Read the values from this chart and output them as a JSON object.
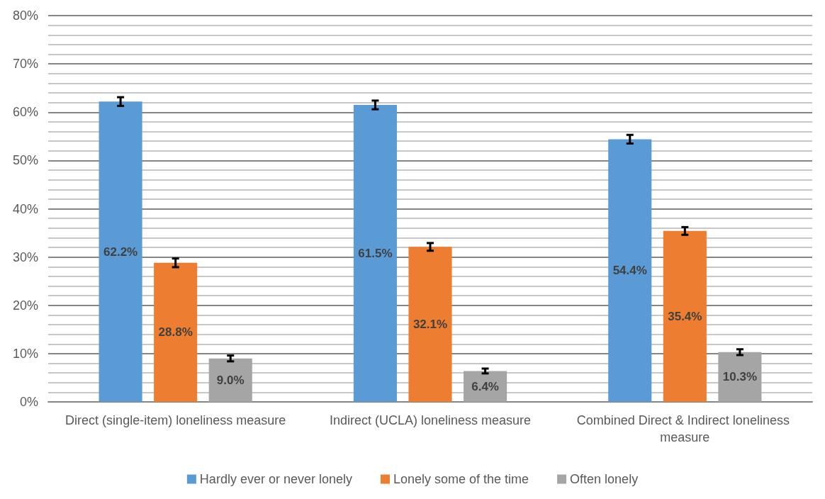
{
  "chart_data": {
    "type": "bar",
    "categories": [
      "Direct (single-item) loneliness measure",
      "Indirect (UCLA) loneliness measure",
      "Combined Direct & Indirect loneliness measure"
    ],
    "series": [
      {
        "name": "Hardly ever or never lonely",
        "color": "#5b9bd5",
        "values": [
          62.2,
          61.5,
          54.4
        ],
        "errors": [
          0.9,
          0.9,
          0.9
        ],
        "value_labels": [
          "62.2%",
          "61.5%",
          "54.4%"
        ]
      },
      {
        "name": "Lonely some of the time",
        "color": "#ed7d31",
        "values": [
          28.8,
          32.1,
          35.4
        ],
        "errors": [
          0.9,
          0.8,
          0.8
        ],
        "value_labels": [
          "28.8%",
          "32.1%",
          "35.4%"
        ]
      },
      {
        "name": "Often lonely",
        "color": "#a5a5a5",
        "values": [
          9.0,
          6.4,
          10.3
        ],
        "errors": [
          0.6,
          0.5,
          0.6
        ],
        "value_labels": [
          "9.0%",
          "6.4%",
          "10.3%"
        ]
      }
    ],
    "ylim": [
      0,
      80
    ],
    "yticks": [
      {
        "value": 0,
        "label": "0%"
      },
      {
        "value": 2,
        "label": null
      },
      {
        "value": 4,
        "label": null
      },
      {
        "value": 6,
        "label": null
      },
      {
        "value": 8,
        "label": null
      },
      {
        "value": 10,
        "label": "10%"
      },
      {
        "value": 12,
        "label": null
      },
      {
        "value": 14,
        "label": null
      },
      {
        "value": 16,
        "label": null
      },
      {
        "value": 18,
        "label": null
      },
      {
        "value": 20,
        "label": "20%"
      },
      {
        "value": 22,
        "label": null
      },
      {
        "value": 24,
        "label": null
      },
      {
        "value": 26,
        "label": null
      },
      {
        "value": 28,
        "label": null
      },
      {
        "value": 30,
        "label": "30%"
      },
      {
        "value": 32,
        "label": null
      },
      {
        "value": 34,
        "label": null
      },
      {
        "value": 36,
        "label": null
      },
      {
        "value": 38,
        "label": null
      },
      {
        "value": 40,
        "label": "40%"
      },
      {
        "value": 42,
        "label": null
      },
      {
        "value": 44,
        "label": null
      },
      {
        "value": 46,
        "label": null
      },
      {
        "value": 48,
        "label": null
      },
      {
        "value": 50,
        "label": "50%"
      },
      {
        "value": 52,
        "label": null
      },
      {
        "value": 54,
        "label": null
      },
      {
        "value": 56,
        "label": null
      },
      {
        "value": 58,
        "label": null
      },
      {
        "value": 60,
        "label": "60%"
      },
      {
        "value": 62,
        "label": null
      },
      {
        "value": 64,
        "label": null
      },
      {
        "value": 66,
        "label": null
      },
      {
        "value": 68,
        "label": null
      },
      {
        "value": 70,
        "label": "70%"
      },
      {
        "value": 72,
        "label": null
      },
      {
        "value": 74,
        "label": null
      },
      {
        "value": 76,
        "label": null
      },
      {
        "value": 78,
        "label": null
      },
      {
        "value": 80,
        "label": "80%"
      }
    ],
    "grid": true,
    "legend": "bottom"
  }
}
